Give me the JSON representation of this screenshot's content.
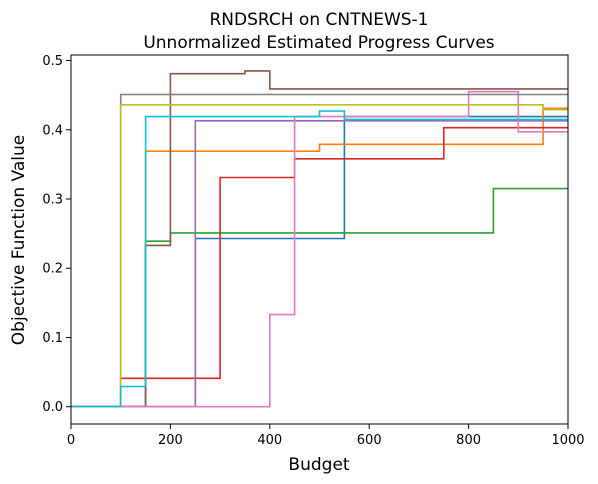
{
  "chart_data": {
    "type": "line",
    "step": "post",
    "title": "RNDSRCH on CNTNEWS-1",
    "subtitle": "Unnormalized Estimated Progress Curves",
    "xlabel": "Budget",
    "ylabel": "Objective Function Value",
    "xlim": [
      0,
      1000
    ],
    "ylim": [
      -0.025,
      0.508
    ],
    "xticks": [
      0,
      200,
      400,
      600,
      800,
      1000
    ],
    "yticks": [
      0.0,
      0.1,
      0.2,
      0.3,
      0.4,
      0.5
    ],
    "grid": false,
    "legend": "none",
    "series": [
      {
        "color": "#1f77b4",
        "x": [
          0,
          250,
          550,
          1000
        ],
        "y": [
          0,
          0.243,
          0.419,
          0.419
        ]
      },
      {
        "color": "#ff7f0e",
        "x": [
          0,
          150,
          500,
          950,
          1000
        ],
        "y": [
          0,
          0.369,
          0.379,
          0.431,
          0.431
        ]
      },
      {
        "color": "#2ca02c",
        "x": [
          0,
          150,
          200,
          850,
          1000
        ],
        "y": [
          0,
          0.239,
          0.251,
          0.315,
          0.315
        ]
      },
      {
        "color": "#d62728",
        "x": [
          0,
          100,
          300,
          450,
          750,
          1000
        ],
        "y": [
          0,
          0.041,
          0.331,
          0.358,
          0.403,
          0.403
        ]
      },
      {
        "color": "#9467bd",
        "x": [
          0,
          250,
          1000
        ],
        "y": [
          0,
          0.413,
          0.413
        ]
      },
      {
        "color": "#8c564b",
        "x": [
          0,
          150,
          200,
          350,
          400,
          1000
        ],
        "y": [
          0,
          0.233,
          0.481,
          0.485,
          0.459,
          0.459
        ]
      },
      {
        "color": "#e377c2",
        "x": [
          0,
          400,
          450,
          800,
          900,
          1000
        ],
        "y": [
          0,
          0.133,
          0.419,
          0.455,
          0.397,
          0.397
        ]
      },
      {
        "color": "#7f7f7f",
        "x": [
          0,
          100,
          1000
        ],
        "y": [
          0,
          0.451,
          0.451
        ]
      },
      {
        "color": "#bcbd22",
        "x": [
          0,
          100,
          950,
          1000
        ],
        "y": [
          0,
          0.436,
          0.429,
          0.429
        ]
      },
      {
        "color": "#17becf",
        "x": [
          0,
          100,
          150,
          500,
          550,
          1000
        ],
        "y": [
          0,
          0.029,
          0.419,
          0.427,
          0.415,
          0.415
        ]
      }
    ]
  }
}
